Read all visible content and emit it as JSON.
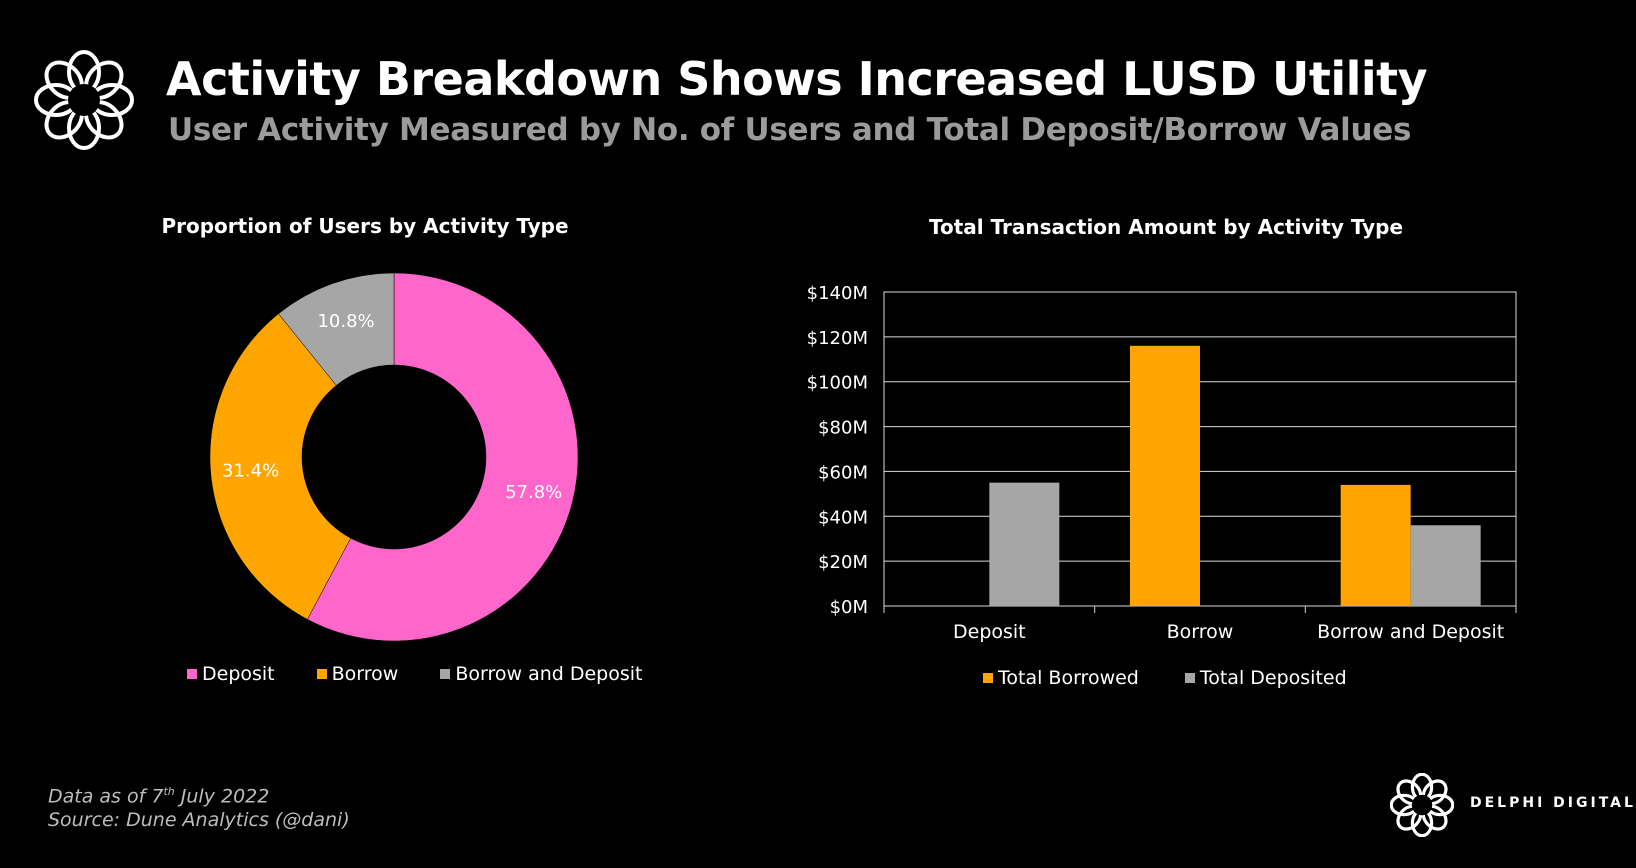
{
  "header": {
    "title": "Activity Breakdown Shows Increased LUSD Utility",
    "subtitle": "User Activity Measured by No. of Users and Total Deposit/Borrow Values"
  },
  "footer": {
    "date_prefix": "Data as of 7",
    "date_sup": "th",
    "date_suffix": " July 2022",
    "source": "Source: Dune Analytics (@dani)",
    "brand": "DELPHI DIGITAL"
  },
  "icons": {
    "logo": "delphi-flower-logo",
    "brand": "delphi-flower-logo"
  },
  "chart_data": [
    {
      "type": "pie",
      "title": "Proportion of Users by Activity Type",
      "donut": true,
      "legend_position": "bottom",
      "slices": [
        {
          "label": "Deposit",
          "value": 57.8,
          "display": "57.8%",
          "color": "#ff66cc"
        },
        {
          "label": "Borrow",
          "value": 31.4,
          "display": "31.4%",
          "color": "#ffa500"
        },
        {
          "label": "Borrow and Deposit",
          "value": 10.8,
          "display": "10.8%",
          "color": "#a6a6a6"
        }
      ]
    },
    {
      "type": "bar",
      "title": "Total Transaction Amount by Activity Type",
      "categories": [
        "Deposit",
        "Borrow",
        "Borrow and Deposit"
      ],
      "series": [
        {
          "name": "Total Borrowed",
          "color": "#ffa500",
          "values": [
            0,
            116,
            54
          ]
        },
        {
          "name": "Total Deposited",
          "color": "#a6a6a6",
          "values": [
            55,
            0,
            36
          ]
        }
      ],
      "ylim": [
        0,
        140
      ],
      "yticks": [
        0,
        20,
        40,
        60,
        80,
        100,
        120,
        140
      ],
      "ytick_labels": [
        "$0M",
        "$20M",
        "$40M",
        "$60M",
        "$80M",
        "$100M",
        "$120M",
        "$140M"
      ],
      "grid": true,
      "legend_position": "bottom"
    }
  ]
}
